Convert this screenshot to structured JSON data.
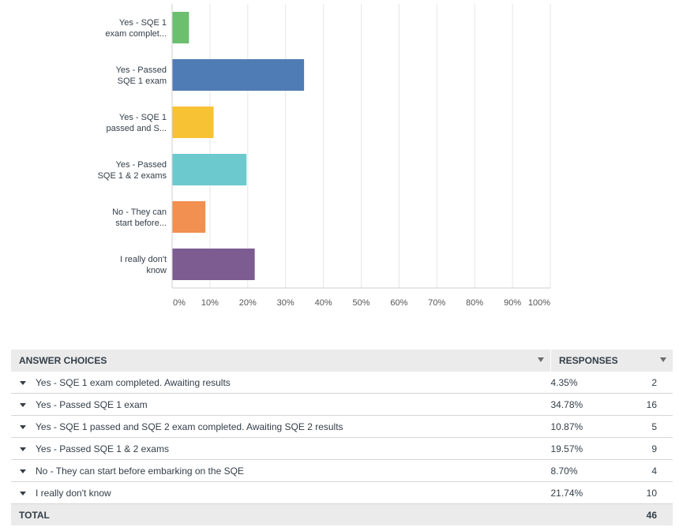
{
  "chart_data": {
    "type": "bar",
    "orientation": "horizontal",
    "categories": [
      "Yes - SQE 1 exam complet...",
      "Yes - Passed SQE 1 exam",
      "Yes - SQE 1 passed and S...",
      "Yes - Passed SQE 1 & 2 exams",
      "No - They can start before...",
      "I really don't know"
    ],
    "category_lines": [
      [
        "Yes - SQE 1",
        "exam complet..."
      ],
      [
        "Yes - Passed",
        "SQE 1 exam"
      ],
      [
        "Yes - SQE 1",
        "passed and S..."
      ],
      [
        "Yes - Passed",
        "SQE 1 & 2 exams"
      ],
      [
        "No - They can",
        "start before..."
      ],
      [
        "I really don't",
        "know"
      ]
    ],
    "values": [
      4.35,
      34.78,
      10.87,
      19.57,
      8.7,
      21.74
    ],
    "colors": [
      "#6bbf6f",
      "#507cb6",
      "#f8c235",
      "#6ccace",
      "#f19051",
      "#7d5c92"
    ],
    "x_ticks": [
      "0%",
      "10%",
      "20%",
      "30%",
      "40%",
      "50%",
      "60%",
      "70%",
      "80%",
      "90%",
      "100%"
    ],
    "xlim": [
      0,
      100
    ],
    "grid": true,
    "title": "",
    "xlabel": "",
    "ylabel": ""
  },
  "table": {
    "header_choice": "ANSWER CHOICES",
    "header_responses": "RESPONSES",
    "rows": [
      {
        "choice": "Yes - SQE 1 exam completed. Awaiting results",
        "pct": "4.35%",
        "count": "2"
      },
      {
        "choice": "Yes - Passed SQE 1 exam",
        "pct": "34.78%",
        "count": "16"
      },
      {
        "choice": "Yes - SQE 1 passed and SQE 2 exam completed. Awaiting SQE 2 results",
        "pct": "10.87%",
        "count": "5"
      },
      {
        "choice": "Yes - Passed SQE 1 & 2 exams",
        "pct": "19.57%",
        "count": "9"
      },
      {
        "choice": "No - They can start before embarking on the SQE",
        "pct": "8.70%",
        "count": "4"
      },
      {
        "choice": "I really don't know",
        "pct": "21.74%",
        "count": "10"
      }
    ],
    "total_label": "TOTAL",
    "total_count": "46"
  },
  "icons": {
    "sort": "sort-arrow-icon",
    "row_toggle": "caret-down-icon"
  }
}
